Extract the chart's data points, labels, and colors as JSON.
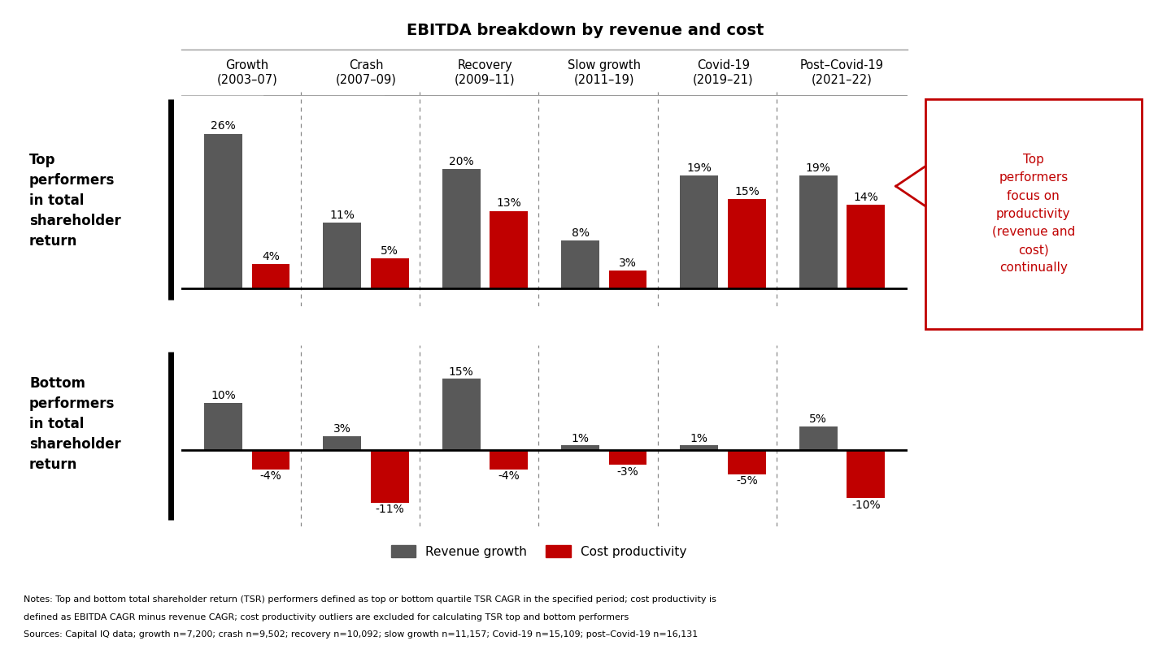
{
  "title": "EBITDA breakdown by revenue and cost",
  "periods": [
    "Growth\n(2003–07)",
    "Crash\n(2007–09)",
    "Recovery\n(2009–11)",
    "Slow growth\n(2011–19)",
    "Covid-19\n(2019–21)",
    "Post–Covid-19\n(2021–22)"
  ],
  "top_revenue": [
    26,
    11,
    20,
    8,
    19,
    19
  ],
  "top_cost": [
    4,
    5,
    13,
    3,
    15,
    14
  ],
  "bottom_revenue": [
    10,
    3,
    15,
    1,
    1,
    5
  ],
  "bottom_cost": [
    -4,
    -11,
    -4,
    -3,
    -5,
    -10
  ],
  "bar_color_revenue": "#595959",
  "bar_color_cost": "#C00000",
  "top_label": "Top\nperformers\nin total\nshareholder\nreturn",
  "bottom_label": "Bottom\nperformers\nin total\nshareholder\nreturn",
  "legend_revenue": "Revenue growth",
  "legend_cost": "Cost productivity",
  "annotation_text": "Top\nperformers\nfocus on\nproductivity\n(revenue and\ncost)\ncontinually",
  "notes_line1": "Notes: Top and bottom total shareholder return (TSR) performers defined as top or bottom quartile TSR CAGR in the specified period; cost productivity is",
  "notes_line2": "defined as EBITDA CAGR minus revenue CAGR; cost productivity outliers are excluded for calculating TSR top and bottom performers",
  "sources": "Sources: Capital IQ data; growth n=7,200; crash n=9,502; recovery n=10,092; slow growth n=11,157; Covid-19 n=15,109; post–Covid-19 n=16,131",
  "bar_width": 0.32,
  "bar_gap": 0.08
}
